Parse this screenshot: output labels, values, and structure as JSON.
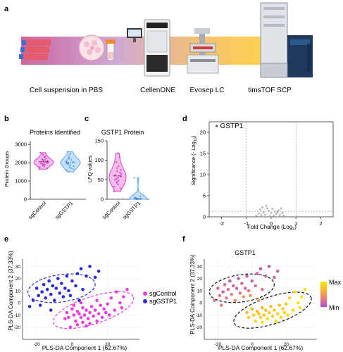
{
  "panels": {
    "a": {
      "letter": "a",
      "steps": [
        "Cell suspension in PBS",
        "CellenONE",
        "Evosep LC",
        "timsTOF SCP"
      ]
    },
    "b": {
      "letter": "b",
      "title": "Proteins Identified",
      "ylabel": "Protein Groups",
      "yticks": [
        "0",
        "1000",
        "2000",
        "3000"
      ],
      "categories": [
        "sgControl",
        "sgGSTP1"
      ],
      "colors": [
        "#e040c8",
        "#5aa7f0"
      ]
    },
    "c": {
      "letter": "c",
      "title": "GSTP1 Protein",
      "ylabel": "LFQ values",
      "yticks": [
        "0",
        "50",
        "100",
        "150"
      ],
      "categories": [
        "sgControl",
        "sgGSTP1"
      ],
      "colors": [
        "#e040c8",
        "#5aa7f0"
      ]
    },
    "d": {
      "letter": "d",
      "ylabel_main": "Significance (- Log",
      "ylabel_sub": "10",
      "xlabel_main": "Fold Change (Log",
      "xlabel_sub": "2",
      "yticks": [
        "0",
        "5",
        "10",
        "15",
        "20"
      ],
      "xticks": [
        "-2",
        "-1",
        "0",
        "1",
        "2"
      ],
      "annotation": "GSTP1"
    },
    "e": {
      "letter": "e",
      "xlabel": "PLS-DA Component 1 (62.67%)",
      "ylabel": "PLS-DA Component 2 (37.33%)",
      "xticks": [
        "-20",
        "0",
        "20"
      ],
      "yticks": [
        "-20",
        "-10",
        "0",
        "10",
        "20",
        "30"
      ],
      "legend": [
        {
          "label": "sgControl",
          "color": "#ee3de0"
        },
        {
          "label": "sgGSTP1",
          "color": "#2a2ad8"
        }
      ]
    },
    "f": {
      "letter": "f",
      "title": "GSTP1",
      "xlabel": "PLS-DA Component 1 (62.67%)",
      "ylabel": "PLS-DA Component 2 (37.33%)",
      "xticks": [
        "-20",
        "0",
        "20"
      ],
      "yticks": [
        "-20",
        "-10",
        "0",
        "10",
        "20",
        "30"
      ],
      "colorbar": {
        "max": "Max",
        "min": "Min",
        "colors": [
          "#ffe600",
          "#f79a4a",
          "#b64bd6"
        ]
      }
    }
  },
  "chart_data": [
    {
      "panel": "b",
      "type": "scatter",
      "title": "Proteins Identified",
      "xlabel": "",
      "ylabel": "Protein Groups",
      "ylim": [
        0,
        3200
      ],
      "categories": [
        "sgControl",
        "sgGSTP1"
      ],
      "series": [
        {
          "name": "sgControl",
          "values": [
            1650,
            1700,
            1750,
            1800,
            1850,
            1900,
            1900,
            1950,
            1950,
            2000,
            2000,
            2000,
            2050,
            2050,
            2050,
            2100,
            2100,
            2150,
            2150,
            2200,
            2250,
            2300,
            2350,
            2450,
            2550
          ]
        },
        {
          "name": "sgGSTP1",
          "values": [
            1500,
            1600,
            1650,
            1700,
            1750,
            1800,
            1850,
            1900,
            1950,
            1950,
            2000,
            2000,
            2050,
            2050,
            2100,
            2100,
            2150,
            2200,
            2250,
            2300,
            2400,
            2500,
            2600
          ]
        }
      ]
    },
    {
      "panel": "c",
      "type": "scatter",
      "title": "GSTP1 Protein",
      "xlabel": "",
      "ylabel": "LFQ values",
      "ylim": [
        0,
        150
      ],
      "categories": [
        "sgControl",
        "sgGSTP1"
      ],
      "series": [
        {
          "name": "sgControl",
          "values": [
            20,
            28,
            32,
            38,
            42,
            45,
            48,
            50,
            52,
            55,
            58,
            60,
            62,
            65,
            68,
            72,
            75,
            80,
            85,
            95,
            108,
            118
          ]
        },
        {
          "name": "sgGSTP1",
          "values": [
            0,
            0,
            0,
            0,
            0,
            1,
            1,
            2,
            2,
            3,
            4,
            5,
            8,
            55
          ]
        }
      ]
    },
    {
      "panel": "d",
      "type": "scatter",
      "xlabel": "Fold Change (Log2)",
      "ylabel": "Significance (- Log10)",
      "xlim": [
        -2.5,
        2.5
      ],
      "ylim": [
        0,
        22.5
      ],
      "highlight": {
        "label": "GSTP1",
        "x": -2.2,
        "y": 21.5
      },
      "points": [
        [
          -0.45,
          1.7
        ],
        [
          -0.35,
          2.2
        ],
        [
          -0.2,
          2.6
        ],
        [
          0.05,
          1.9
        ],
        [
          -0.3,
          1.1
        ],
        [
          -0.1,
          1.4
        ],
        [
          0.15,
          1.2
        ],
        [
          0.3,
          1.5
        ],
        [
          0.45,
          0.9
        ],
        [
          -0.5,
          0.8
        ],
        [
          0.0,
          0.9
        ],
        [
          0.2,
          0.6
        ],
        [
          -0.25,
          0.5
        ],
        [
          0.35,
          0.4
        ],
        [
          -0.4,
          0.4
        ],
        [
          0.1,
          0.3
        ],
        [
          -0.05,
          0.2
        ],
        [
          0.5,
          0.3
        ],
        [
          -0.6,
          0.3
        ],
        [
          0.25,
          1.0
        ],
        [
          0.4,
          2.0
        ],
        [
          -0.15,
          2.0
        ]
      ]
    },
    {
      "panel": "e",
      "type": "scatter",
      "xlabel": "PLS-DA Component 1 (62.67%)",
      "ylabel": "PLS-DA Component 2 (37.33%)",
      "xlim": [
        -28,
        38
      ],
      "ylim": [
        -30,
        36
      ],
      "series": [
        {
          "name": "sgControl",
          "points": [
            [
              -3,
              -8
            ],
            [
              -2,
              -12
            ],
            [
              0,
              -5
            ],
            [
              1,
              -10
            ],
            [
              2,
              -15
            ],
            [
              3,
              -7
            ],
            [
              4,
              -9
            ],
            [
              5,
              -12
            ],
            [
              6,
              -4
            ],
            [
              6,
              -16
            ],
            [
              7,
              -10
            ],
            [
              8,
              -6
            ],
            [
              9,
              -13
            ],
            [
              10,
              -8
            ],
            [
              11,
              -3
            ],
            [
              12,
              -11
            ],
            [
              13,
              -6
            ],
            [
              14,
              -15
            ],
            [
              15,
              -9
            ],
            [
              16,
              -2
            ],
            [
              17,
              -12
            ],
            [
              18,
              -5
            ],
            [
              19,
              -8
            ],
            [
              20,
              -1
            ],
            [
              21,
              -10
            ],
            [
              22,
              4
            ],
            [
              24,
              -6
            ],
            [
              25,
              9
            ],
            [
              27,
              0
            ],
            [
              28,
              -4
            ],
            [
              29,
              5
            ],
            [
              31,
              11
            ],
            [
              -1,
              -20
            ],
            [
              3,
              -18
            ],
            [
              8,
              -19
            ],
            [
              1,
              -2
            ],
            [
              5,
              0
            ],
            [
              -4,
              -13
            ],
            [
              10,
              -17
            ],
            [
              14,
              2
            ]
          ]
        },
        {
          "name": "sgGSTP1",
          "points": [
            [
              -22,
              2
            ],
            [
              -20,
              12
            ],
            [
              -19,
              6
            ],
            [
              -18,
              -2
            ],
            [
              -17,
              9
            ],
            [
              -16,
              15
            ],
            [
              -15,
              4
            ],
            [
              -14,
              11
            ],
            [
              -13,
              18
            ],
            [
              -12,
              7
            ],
            [
              -11,
              14
            ],
            [
              -10,
              2
            ],
            [
              -9,
              12
            ],
            [
              -8,
              20
            ],
            [
              -7,
              8
            ],
            [
              -6,
              16
            ],
            [
              -5,
              5
            ],
            [
              -4,
              12
            ],
            [
              -3,
              22
            ],
            [
              -2,
              10
            ],
            [
              -1,
              6
            ],
            [
              0,
              18
            ],
            [
              2,
              14
            ],
            [
              3,
              24
            ],
            [
              4,
              2
            ],
            [
              5,
              28
            ],
            [
              6,
              11
            ],
            [
              8,
              22
            ],
            [
              10,
              30
            ],
            [
              13,
              21
            ],
            [
              15,
              26
            ],
            [
              -24,
              -3
            ],
            [
              -12,
              -6
            ]
          ]
        }
      ]
    },
    {
      "panel": "f",
      "type": "scatter",
      "title": "GSTP1",
      "xlabel": "PLS-DA Component 1 (62.67%)",
      "ylabel": "PLS-DA Component 2 (37.33%)",
      "xlim": [
        -28,
        38
      ],
      "ylim": [
        -30,
        36
      ],
      "color_scale": "Min to Max",
      "points": [
        [
          -22,
          2,
          0.25
        ],
        [
          -20,
          12,
          0.2
        ],
        [
          -19,
          6,
          0.3
        ],
        [
          -18,
          -2,
          0.35
        ],
        [
          -17,
          9,
          0.15
        ],
        [
          -16,
          15,
          0.2
        ],
        [
          -15,
          4,
          0.3
        ],
        [
          -14,
          11,
          0.25
        ],
        [
          -13,
          18,
          0.1
        ],
        [
          -12,
          7,
          0.35
        ],
        [
          -11,
          14,
          0.2
        ],
        [
          -10,
          2,
          0.4
        ],
        [
          -9,
          12,
          0.15
        ],
        [
          -8,
          20,
          0.1
        ],
        [
          -7,
          8,
          0.3
        ],
        [
          -6,
          16,
          0.2
        ],
        [
          -5,
          5,
          0.45
        ],
        [
          -4,
          12,
          0.2
        ],
        [
          -3,
          22,
          0.1
        ],
        [
          -2,
          10,
          0.3
        ],
        [
          -1,
          6,
          0.5
        ],
        [
          0,
          18,
          0.15
        ],
        [
          2,
          14,
          0.2
        ],
        [
          3,
          24,
          0.1
        ],
        [
          4,
          2,
          0.55
        ],
        [
          5,
          28,
          0.1
        ],
        [
          6,
          11,
          0.3
        ],
        [
          8,
          22,
          0.15
        ],
        [
          10,
          30,
          0.1
        ],
        [
          13,
          21,
          0.2
        ],
        [
          15,
          26,
          0.15
        ],
        [
          -3,
          -8,
          0.7
        ],
        [
          -2,
          -12,
          0.8
        ],
        [
          0,
          -5,
          0.65
        ],
        [
          1,
          -10,
          0.85
        ],
        [
          2,
          -15,
          0.9
        ],
        [
          3,
          -7,
          0.75
        ],
        [
          4,
          -9,
          0.8
        ],
        [
          5,
          -12,
          0.85
        ],
        [
          6,
          -4,
          0.7
        ],
        [
          6,
          -16,
          0.95
        ],
        [
          7,
          -10,
          0.8
        ],
        [
          8,
          -6,
          0.75
        ],
        [
          9,
          -13,
          0.9
        ],
        [
          10,
          -8,
          0.8
        ],
        [
          11,
          -3,
          0.7
        ],
        [
          12,
          -11,
          0.85
        ],
        [
          13,
          -6,
          0.8
        ],
        [
          14,
          -15,
          0.95
        ],
        [
          15,
          -9,
          0.85
        ],
        [
          16,
          -2,
          0.75
        ],
        [
          17,
          -12,
          0.9
        ],
        [
          18,
          -5,
          0.85
        ],
        [
          19,
          -8,
          0.9
        ],
        [
          20,
          -1,
          0.8
        ],
        [
          21,
          -10,
          0.95
        ],
        [
          22,
          4,
          0.85
        ],
        [
          24,
          -6,
          0.9
        ],
        [
          25,
          9,
          0.95
        ],
        [
          27,
          0,
          1.0
        ],
        [
          28,
          -4,
          0.95
        ],
        [
          29,
          5,
          1.0
        ],
        [
          31,
          11,
          0.95
        ]
      ]
    }
  ]
}
